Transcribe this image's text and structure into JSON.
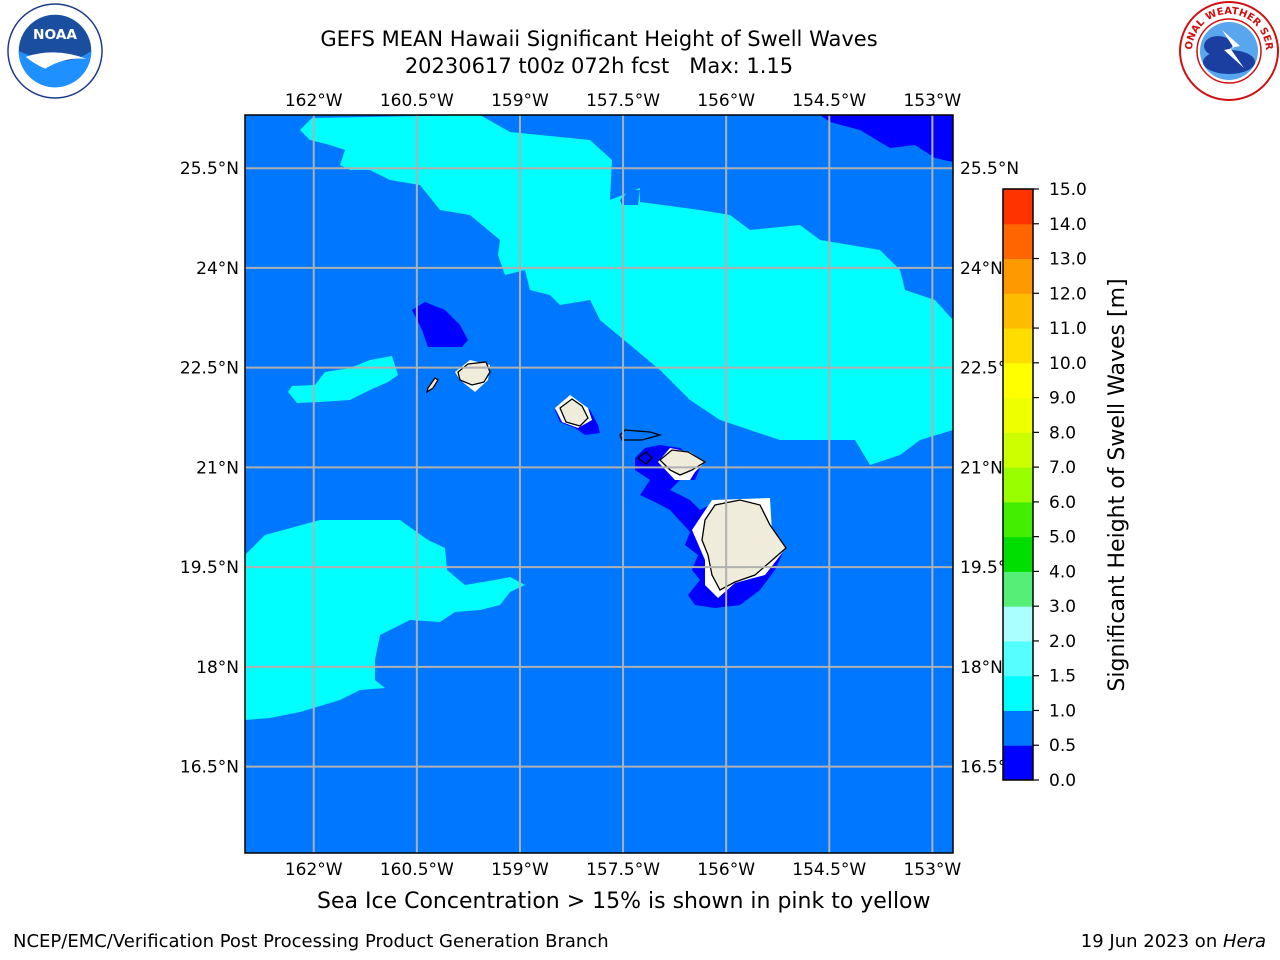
{
  "header": {
    "title_line1": "GEFS MEAN Hawaii Significant Height of Swell Waves",
    "title_line2": "20230617 t00z 072h fcst   Max: 1.15"
  },
  "logos": {
    "left": "NOAA",
    "right": "NATIONAL WEATHER SERVICE"
  },
  "map": {
    "lon_ticks": [
      "162°W",
      "160.5°W",
      "159°W",
      "157.5°W",
      "156°W",
      "154.5°W",
      "153°W"
    ],
    "lat_ticks_left": [
      "25.5°N",
      "24°N",
      "22.5°N",
      "21°N",
      "19.5°N",
      "18°N",
      "16.5°N"
    ],
    "lat_ticks_right": [
      "25.5°N",
      "24°N",
      "22.5°N",
      "21°N",
      "19.5°N",
      "18°N",
      "16.5°N"
    ],
    "lon_range": [
      -163,
      -152.7
    ],
    "lat_range": [
      15.2,
      26.3
    ],
    "grid": true,
    "colors": {
      "ocean_0_0_5": "#0000ff",
      "ocean_0_5_1_0": "#0077ff",
      "ocean_1_0_1_5": "#00ffff",
      "land": "#efecdc",
      "grid": "#b0b0b0"
    }
  },
  "colorbar": {
    "label": "Significant Height of Swell Waves [m]",
    "ticks": [
      "0.0",
      "0.5",
      "1.0",
      "1.5",
      "2.0",
      "3.0",
      "4.0",
      "5.0",
      "6.0",
      "7.0",
      "8.0",
      "9.0",
      "10.0",
      "11.0",
      "12.0",
      "13.0",
      "14.0",
      "15.0"
    ],
    "colors": [
      "#0000ff",
      "#0077ff",
      "#00ffff",
      "#55ffff",
      "#aaffff",
      "#55ee77",
      "#00dd00",
      "#44ee00",
      "#99ff00",
      "#ccff00",
      "#eeff00",
      "#ffff00",
      "#ffdd00",
      "#ffbb00",
      "#ff9900",
      "#ff6600",
      "#ff3300",
      "#ff0000"
    ]
  },
  "subtitle": "Sea Ice Concentration > 15% is shown in pink to yellow",
  "footer": {
    "left": "NCEP/EMC/Verification Post Processing Product Generation Branch",
    "right_date": "19 Jun 2023 on ",
    "right_host": "Hera"
  }
}
